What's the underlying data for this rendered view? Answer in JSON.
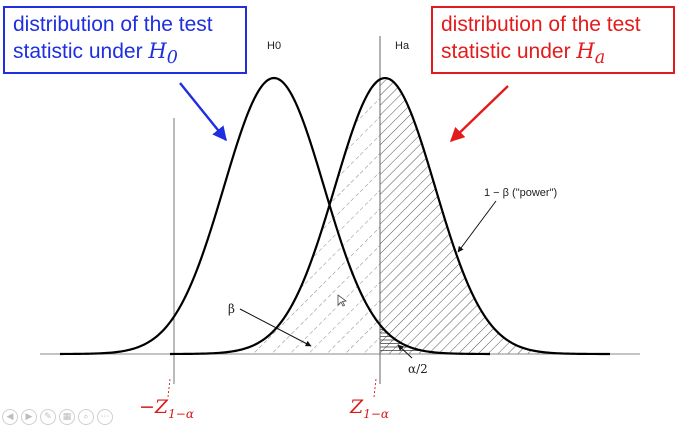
{
  "callouts": {
    "h0": {
      "text": "distribution of the test statistic under ",
      "var": "H",
      "sub": "0",
      "color": "#1f2fe0"
    },
    "ha": {
      "text": "distribution of the test statistic under ",
      "var": "H",
      "sub": "a",
      "color": "#e31b1b"
    }
  },
  "labels": {
    "h0_peak": "H0",
    "ha_peak": "Ha",
    "power": "1 − β  (\"power\")",
    "beta": "β",
    "alpha_half": "α/2"
  },
  "critical_values": {
    "left": {
      "prefix": "−",
      "var": "Z",
      "sub": "1−α"
    },
    "right": {
      "prefix": "",
      "var": "Z",
      "sub": "1−α"
    }
  },
  "toolbar": {
    "buttons": [
      {
        "icon": "previous-slide-icon",
        "glyph": "◀"
      },
      {
        "icon": "next-slide-icon",
        "glyph": "▶"
      },
      {
        "icon": "pen-icon",
        "glyph": "✎"
      },
      {
        "icon": "slides-grid-icon",
        "glyph": "▦"
      },
      {
        "icon": "zoom-icon",
        "glyph": "⌕"
      },
      {
        "icon": "more-options-icon",
        "glyph": "⋯"
      }
    ]
  },
  "colors": {
    "h0": "#1f2fe0",
    "ha": "#e31b1b",
    "critical": "#d81a1a"
  }
}
